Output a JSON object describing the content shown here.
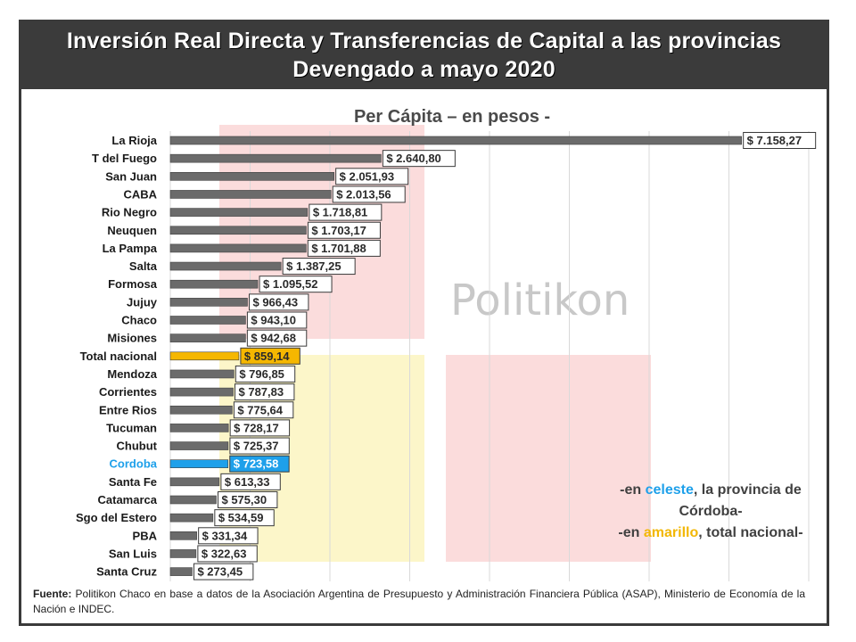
{
  "header": {
    "title_line1": "Inversión Real Directa y Transferencias de Capital a las provincias",
    "title_line2": "Devengado a mayo 2020"
  },
  "watermark": "Politikon",
  "colors": {
    "default_bar": "#6b6b6b",
    "highlight_total": "#f5b700",
    "highlight_cordoba": "#1ea0ea",
    "header_bg": "#3b3b3b"
  },
  "note": {
    "prefix1": "-en ",
    "celeste": "celeste",
    "text1": ", la provincia de Córdoba-",
    "prefix2": "-en ",
    "amarillo": "amarillo",
    "text2": ",  total nacional-"
  },
  "source": {
    "label": "Fuente:",
    "text": "Politikon Chaco en base a datos de la Asociación Argentina de Presupuesto y Administración Financiera Pública (ASAP), Ministerio de Economía de la Nación e INDEC."
  },
  "chart_data": {
    "type": "bar",
    "orientation": "horizontal",
    "title": "Per Cápita – en pesos -",
    "xlim": [
      0,
      8000
    ],
    "grid": true,
    "categories": [
      "La Rioja",
      "T del Fuego",
      "San Juan",
      "CABA",
      "Rio Negro",
      "Neuquen",
      "La Pampa",
      "Salta",
      "Formosa",
      "Jujuy",
      "Chaco",
      "Misiones",
      "Total nacional",
      "Mendoza",
      "Corrientes",
      "Entre Rios",
      "Tucuman",
      "Chubut",
      "Cordoba",
      "Santa Fe",
      "Catamarca",
      "Sgo del Estero",
      "PBA",
      "San Luis",
      "Santa Cruz"
    ],
    "values": [
      7158.27,
      2640.8,
      2051.93,
      2013.56,
      1718.81,
      1703.17,
      1701.88,
      1387.25,
      1095.52,
      966.43,
      943.1,
      942.68,
      859.14,
      796.85,
      787.83,
      775.64,
      728.17,
      725.37,
      723.58,
      613.33,
      575.3,
      534.59,
      331.34,
      322.63,
      273.45
    ],
    "labels": [
      "$ 7.158,27",
      "$ 2.640,80",
      "$ 2.051,93",
      "$ 2.013,56",
      "$ 1.718,81",
      "$ 1.703,17",
      "$ 1.701,88",
      "$ 1.387,25",
      "$ 1.095,52",
      "$ 966,43",
      "$ 943,10",
      "$ 942,68",
      "$ 859,14",
      "$ 796,85",
      "$ 787,83",
      "$ 775,64",
      "$ 728,17",
      "$ 725,37",
      "$ 723,58",
      "$ 613,33",
      "$ 575,30",
      "$ 534,59",
      "$ 331,34",
      "$ 322,63",
      "$ 273,45"
    ],
    "highlights": {
      "Total nacional": "yellow",
      "Cordoba": "blue"
    }
  }
}
